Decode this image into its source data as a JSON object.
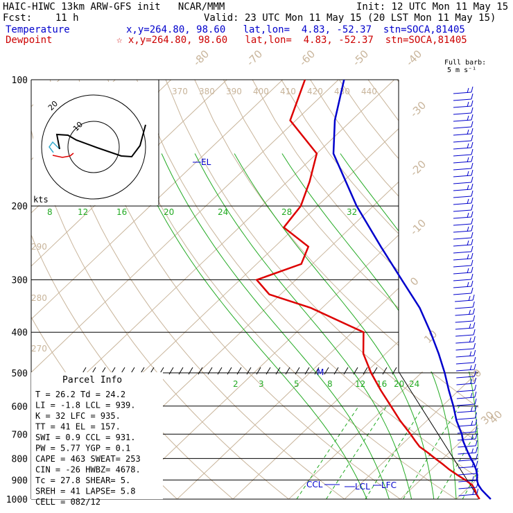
{
  "header": {
    "line1_left": "HAIC-HIWC 13km ARW-GFS init   NCAR/MMM",
    "line1_right": "Init: 12 UTC Mon 11 May 15",
    "line2_left": "Fcst:    11 h",
    "line2_right": "Valid: 23 UTC Mon 11 May 15 (20 LST Mon 11 May 15)",
    "temp_label": "Temperature",
    "temp_info": "x,y=264.80, 98.60   lat,lon=  4.83, -52.37  stn=SOCA,81405",
    "dew_label": "Dewpoint",
    "dew_info": "☆ x,y=264.80, 98.60   lat,lon=  4.83, -52.37  stn=SOCA,81405",
    "barb_note1": "Full barb:",
    "barb_note2": "5 m s⁻¹"
  },
  "colors": {
    "temperature": "#0000cc",
    "dewpoint": "#dd0000",
    "isotherm": "#c8b49a",
    "mixing_ratio": "#22aa22",
    "adiabat": "#22aa22",
    "wind": "#0000cc"
  },
  "parcel": {
    "title": "Parcel Info",
    "rows": [
      "T   =    26.2  Td =  24.2",
      "LI  =    -1.8  LCL =  939.",
      "K   =      32  LFC =  935.",
      "TT  =      41  EL  =  157.",
      "SWI =     0.9  CCL =  931.",
      "PW  =    5.77  YGP =   0.1",
      "CAPE =    463  SWEAT=  253",
      "CIN  =    -26  HWBZ= 4678.",
      "Tc   =   27.8  SHEAR=    5.",
      "SREH =     41  LAPSE=   5.8",
      "CELL = 082/12"
    ]
  },
  "hodograph": {
    "units_label": "kts",
    "ring_labels": [
      "10",
      "20"
    ]
  },
  "chart_data": {
    "type": "line",
    "title": "",
    "y_axis": "pressure (hPa), log scale",
    "ylim": [
      1000,
      100
    ],
    "pressure_ticks": [
      1000,
      900,
      800,
      700,
      600,
      500,
      400,
      300,
      200,
      100
    ],
    "isotherm_labels": [
      "-80",
      "-70",
      "-60",
      "-50",
      "-40",
      "-30",
      "-20",
      "-10",
      "0",
      "10",
      "20",
      "30",
      "40"
    ],
    "theta_labels": [
      "370",
      "380",
      "390",
      "400",
      "410",
      "420",
      "430",
      "440"
    ],
    "theta_low_labels": [
      "290",
      "280",
      "270"
    ],
    "mixing_ratio_labels_upper": [
      "8",
      "12",
      "16",
      "20",
      "24",
      "28",
      "32"
    ],
    "mixing_ratio_labels_lower": [
      "2",
      "3",
      "5",
      "8",
      "12",
      "16",
      "20",
      "24"
    ],
    "level_markers": [
      "EL",
      "M",
      "CCL",
      "LCL",
      "LFC"
    ],
    "series": [
      {
        "name": "Temperature",
        "pressure": [
          1000,
          975,
          950,
          925,
          900,
          875,
          850,
          825,
          800,
          775,
          750,
          725,
          700,
          650,
          600,
          550,
          500,
          450,
          400,
          350,
          300,
          250,
          200,
          150,
          125,
          100
        ],
        "temp_c": [
          26.2,
          24.5,
          22.8,
          21.3,
          20.1,
          19.2,
          18.0,
          16.6,
          15.0,
          13.4,
          11.8,
          10.2,
          8.8,
          5.3,
          2.0,
          -1.8,
          -5.8,
          -10.5,
          -16.0,
          -22.5,
          -31.0,
          -41.0,
          -53.0,
          -67.0,
          -73.0,
          -79.0
        ]
      },
      {
        "name": "Dewpoint",
        "pressure": [
          1000,
          975,
          950,
          925,
          900,
          875,
          850,
          825,
          800,
          775,
          750,
          725,
          700,
          650,
          600,
          550,
          500,
          450,
          400,
          350,
          325,
          300,
          275,
          250,
          225,
          200,
          175,
          150,
          125,
          100
        ],
        "dewpoint_c": [
          24.2,
          22.8,
          21.6,
          20.2,
          18.0,
          15.6,
          13.2,
          11.0,
          8.6,
          6.2,
          3.6,
          1.6,
          -0.4,
          -4.8,
          -9.2,
          -14.0,
          -19.0,
          -24.0,
          -28.0,
          -42.0,
          -52.0,
          -57.0,
          -52.0,
          -54.0,
          -62.0,
          -63.0,
          -66.0,
          -70.0,
          -81.0,
          -86.0
        ]
      }
    ]
  }
}
